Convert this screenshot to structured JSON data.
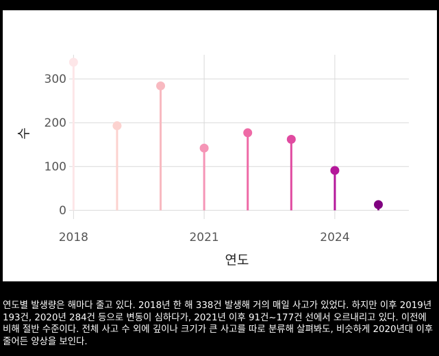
{
  "chart_data": {
    "type": "lollipop",
    "x": [
      2018,
      2019,
      2020,
      2021,
      2022,
      2023,
      2024,
      2025
    ],
    "values": [
      338,
      193,
      284,
      142,
      177,
      162,
      91,
      13
    ],
    "colors": [
      "#fde6e8",
      "#fcd2cf",
      "#f8b9c0",
      "#f595b6",
      "#ee6aa6",
      "#e04aa0",
      "#b4179a",
      "#800080"
    ],
    "xlabel": "연도",
    "ylabel": "수",
    "xticks": [
      2018,
      2021,
      2024
    ],
    "yticks": [
      0,
      100,
      200,
      300
    ],
    "xlim": [
      2017.9,
      2025.7
    ],
    "ylim": [
      -20,
      355
    ],
    "grid": true
  },
  "caption": "연도별 발생량은 해마다 줄고 있다. 2018년 한 해 338건 발생해 거의 매일 사고가 있었다. 하지만 이후 2019년 193건, 2020년 284건 등으로 변동이 심하다가, 2021년 이후 91건~177건 선에서 오르내리고 있다. 이전에 비해 절반 수준이다. 전체 사고 수 외에 깊이나 크기가 큰 사고를 따로 분류해 살펴봐도, 비슷하게 2020년대 이후 줄어든 양상을 보인다."
}
